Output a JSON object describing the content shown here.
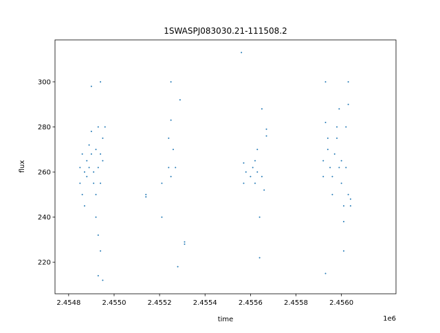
{
  "chart_data": {
    "type": "scatter",
    "title": "1SWASPJ083030.21-111508.2",
    "x_label": "time",
    "y_label": "flux",
    "x_offset_label": "1e6",
    "color": "#1f77b4",
    "x": [
      2.45485,
      2.45485,
      2.45486,
      2.45486,
      2.45487,
      2.45487,
      2.45488,
      2.45488,
      2.45489,
      2.45489,
      2.4549,
      2.4549,
      2.4549,
      2.45491,
      2.45491,
      2.45492,
      2.45492,
      2.45492,
      2.45493,
      2.45493,
      2.45493,
      2.45493,
      2.45494,
      2.45494,
      2.45494,
      2.45494,
      2.45495,
      2.45495,
      2.45495,
      2.45496,
      2.45514,
      2.45514,
      2.45521,
      2.45521,
      2.45524,
      2.45524,
      2.45525,
      2.45525,
      2.45525,
      2.45526,
      2.45527,
      2.45528,
      2.45529,
      2.45531,
      2.45531,
      2.45557,
      2.45557,
      2.45558,
      2.4556,
      2.45561,
      2.45562,
      2.45562,
      2.45563,
      2.45563,
      2.45564,
      2.45564,
      2.45565,
      2.45565,
      2.45566,
      2.45567,
      2.45567,
      2.45556,
      2.45592,
      2.45592,
      2.45593,
      2.45593,
      2.45593,
      2.45594,
      2.45594,
      2.45595,
      2.45596,
      2.45596,
      2.45597,
      2.45598,
      2.45598,
      2.45599,
      2.45599,
      2.456,
      2.456,
      2.45601,
      2.45601,
      2.45601,
      2.45602,
      2.45602,
      2.45603,
      2.45603,
      2.45603,
      2.45604,
      2.45604
    ],
    "values": [
      262,
      255,
      268,
      250,
      260,
      245,
      258,
      265,
      272,
      262,
      278,
      268,
      298,
      260,
      255,
      270,
      240,
      250,
      262,
      280,
      232,
      214,
      268,
      255,
      300,
      225,
      275,
      265,
      212,
      280,
      250,
      249,
      255,
      240,
      275,
      262,
      283,
      258,
      300,
      270,
      262,
      218,
      292,
      229,
      228,
      264,
      255,
      260,
      258,
      262,
      265,
      255,
      260,
      270,
      240,
      222,
      288,
      258,
      252,
      276,
      279,
      313,
      258,
      265,
      282,
      300,
      215,
      275,
      270,
      262,
      258,
      250,
      268,
      280,
      275,
      288,
      262,
      265,
      255,
      245,
      238,
      225,
      262,
      280,
      300,
      290,
      250,
      248,
      245
    ],
    "xlim": [
      2.45474,
      2.45624
    ],
    "xticks": [
      2.4548,
      2.455,
      2.4552,
      2.4554,
      2.4556,
      2.4558,
      2.456
    ],
    "xtick_labels": [
      "2.4548",
      "2.4550",
      "2.4552",
      "2.4554",
      "2.4556",
      "2.4558",
      "2.4560"
    ],
    "ylim": [
      206,
      318.6
    ],
    "yticks": [
      220,
      240,
      260,
      280,
      300
    ]
  }
}
